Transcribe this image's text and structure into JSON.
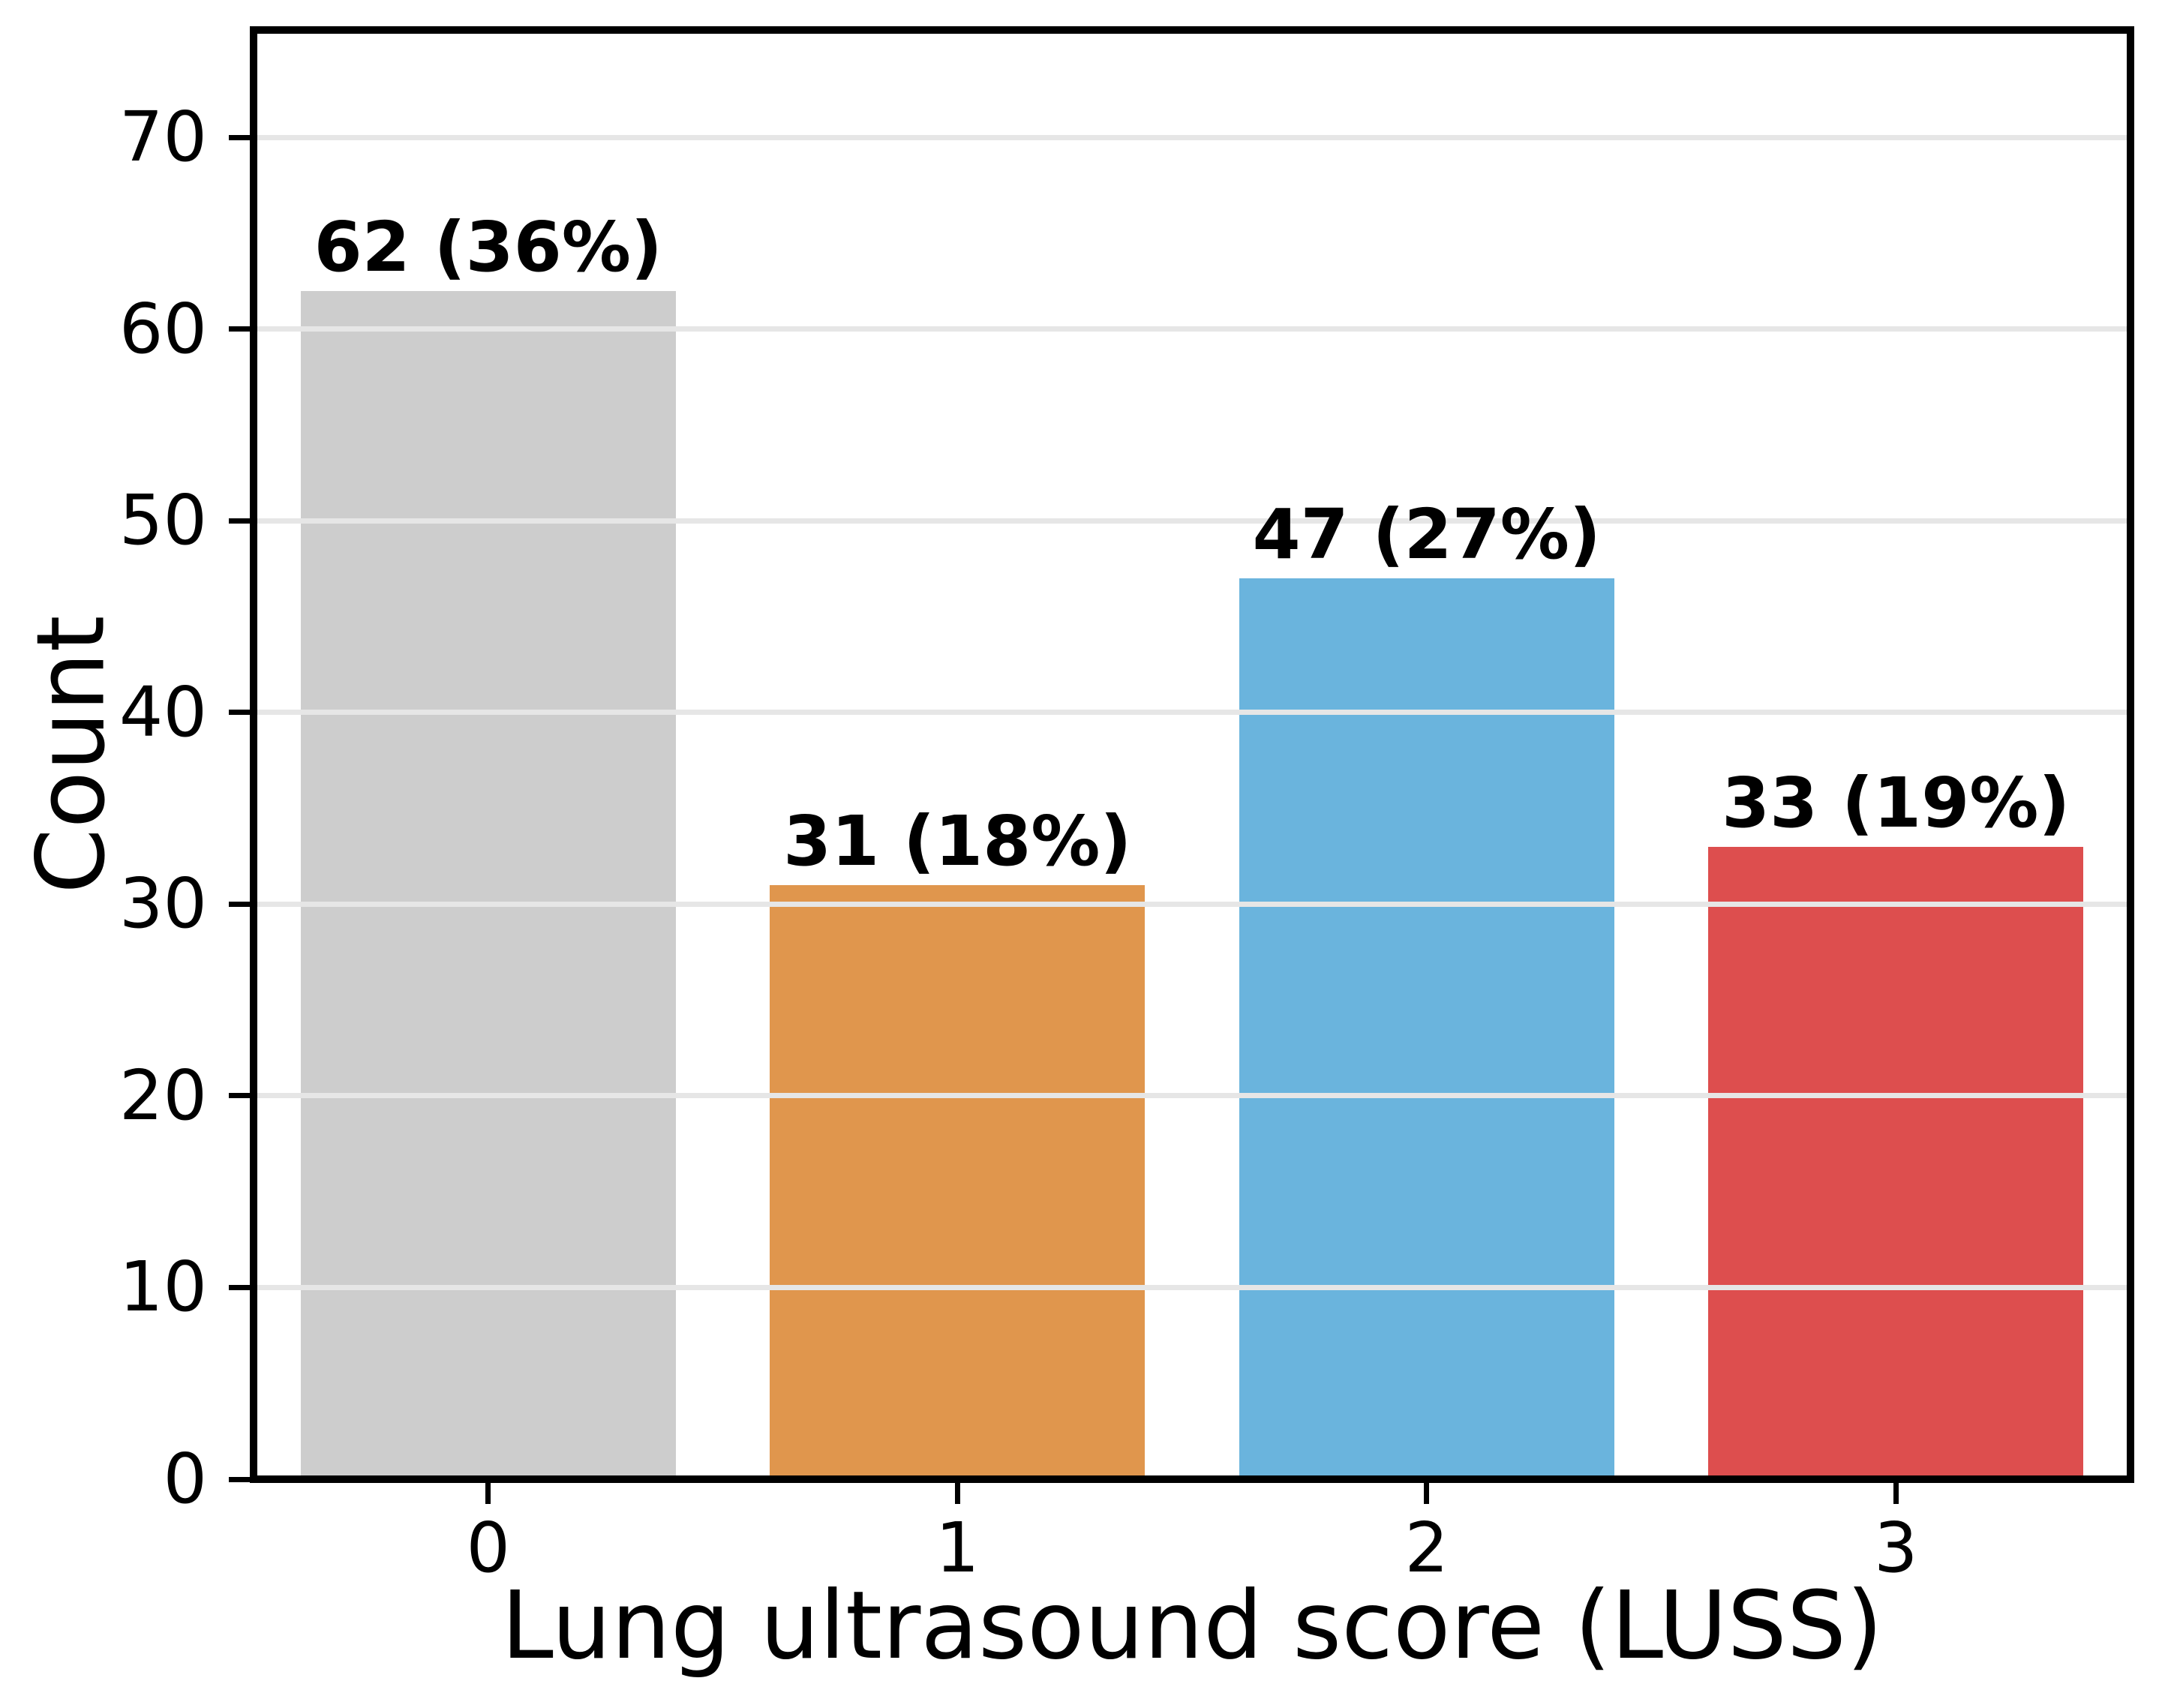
{
  "chart_data": {
    "type": "bar",
    "categories": [
      "0",
      "1",
      "2",
      "3"
    ],
    "values": [
      62,
      31,
      47,
      33
    ],
    "bar_labels": [
      "62 (36%)",
      "31 (18%)",
      "47 (27%)",
      "33 (19%)"
    ],
    "bar_colors": [
      "#cdcdcd",
      "#e0964d",
      "#6ab4dd",
      "#dd4e4e"
    ],
    "xlabel": "Lung ultrasound score (LUSS)",
    "ylabel": "Count",
    "yticks": [
      0,
      10,
      20,
      30,
      40,
      50,
      60,
      70
    ],
    "ylim": [
      0,
      75.6
    ],
    "grid": "horizontal",
    "gridline_color": "#e6e6e6",
    "axis_color": "#000000",
    "text_color": "#000000",
    "background_color": "#ffffff",
    "legend": "none"
  }
}
